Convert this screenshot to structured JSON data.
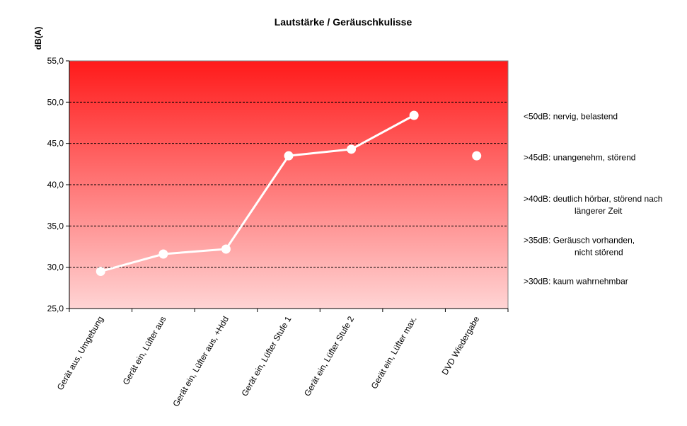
{
  "chart_data": {
    "type": "line",
    "title": "Lautstärke / Geräuschkulisse",
    "ylabel": "dB(A)",
    "xlabel": "",
    "ylim": [
      25,
      55
    ],
    "yticks": [
      "25,0",
      "30,0",
      "35,0",
      "40,0",
      "45,0",
      "50,0",
      "55,0"
    ],
    "grid": "horizontal dashed",
    "categories": [
      "Gerät aus, Umgebung",
      "Gerät ein, Lüfter aus",
      "Gerät ein, Lüfter aus, +Hdd",
      "Gerät ein, Lüfter Stufe 1",
      "Gerät ein, Lüfter Stufe 2",
      "Gerät ein, Lüfter max.",
      "DVD Wiedergabe"
    ],
    "series": [
      {
        "values": [
          29.5,
          31.6,
          32.2,
          43.5,
          44.3,
          48.4,
          null
        ],
        "connected": true
      },
      {
        "values": [
          null,
          null,
          null,
          null,
          null,
          null,
          43.5
        ],
        "connected": false
      }
    ],
    "annotations": [
      {
        "value": 50,
        "lines": [
          "<50dB: nervig, belastend"
        ]
      },
      {
        "value": 45,
        "lines": [
          ">45dB: unangenehm, störend"
        ]
      },
      {
        "value": 40,
        "lines": [
          ">40dB: deutlich hörbar, störend nach",
          "längerer Zeit"
        ]
      },
      {
        "value": 35,
        "lines": [
          ">35dB: Geräusch vorhanden,",
          "nicht störend"
        ]
      },
      {
        "value": 30,
        "lines": [
          ">30dB: kaum wahrnehmbar"
        ]
      }
    ],
    "colors": {
      "background_top": "#ff1a1a",
      "background_bottom": "#ffd4d4",
      "line": "#ffffff",
      "marker": "#ffffff",
      "grid": "#000000"
    }
  }
}
